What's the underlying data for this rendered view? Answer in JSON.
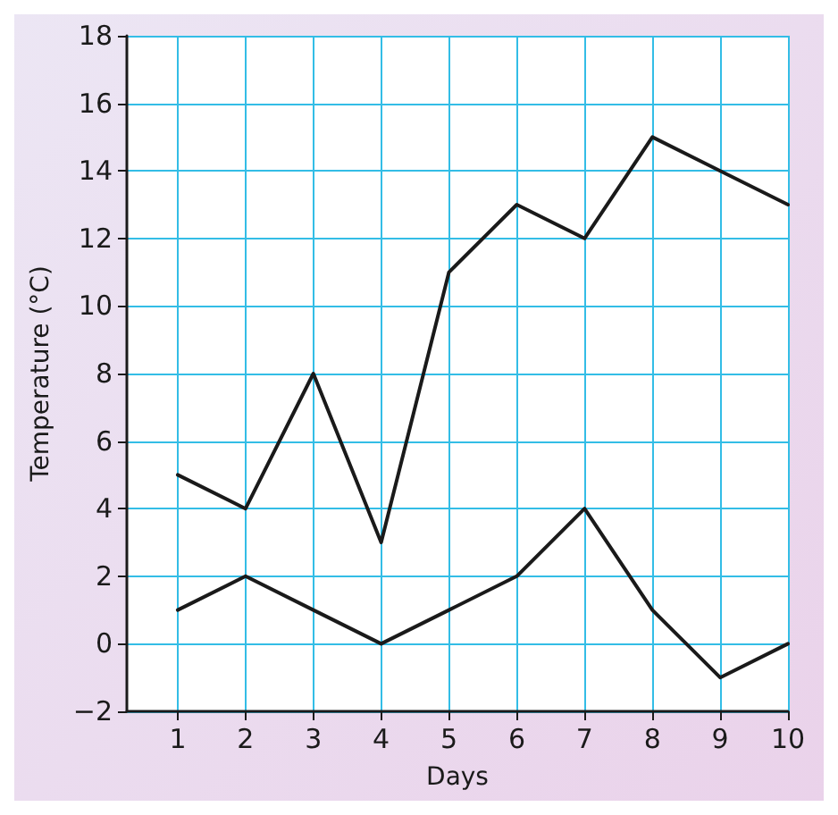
{
  "chart_data": {
    "type": "line",
    "xlabel": "Days",
    "ylabel": "Temperature (°C)",
    "x": [
      1,
      2,
      3,
      4,
      5,
      6,
      7,
      8,
      9,
      10
    ],
    "series": [
      {
        "color": "#1a1a1a",
        "values": [
          5,
          4,
          8,
          3,
          11,
          13,
          12,
          15,
          14,
          13
        ]
      },
      {
        "color": "#1a1a1a",
        "values": [
          1,
          2,
          1,
          0,
          1,
          2,
          4,
          1,
          -1,
          0
        ]
      }
    ],
    "xlim": [
      0.25,
      10
    ],
    "xticks": [
      1,
      2,
      3,
      4,
      5,
      6,
      7,
      8,
      9,
      10
    ],
    "ylim": [
      -2,
      18
    ],
    "yticks": [
      {
        "value": -2,
        "label": "−2"
      },
      0,
      2,
      4,
      6,
      8,
      10,
      12,
      14,
      16,
      18
    ],
    "grid": true,
    "marker": "none",
    "line_style": "solid"
  }
}
